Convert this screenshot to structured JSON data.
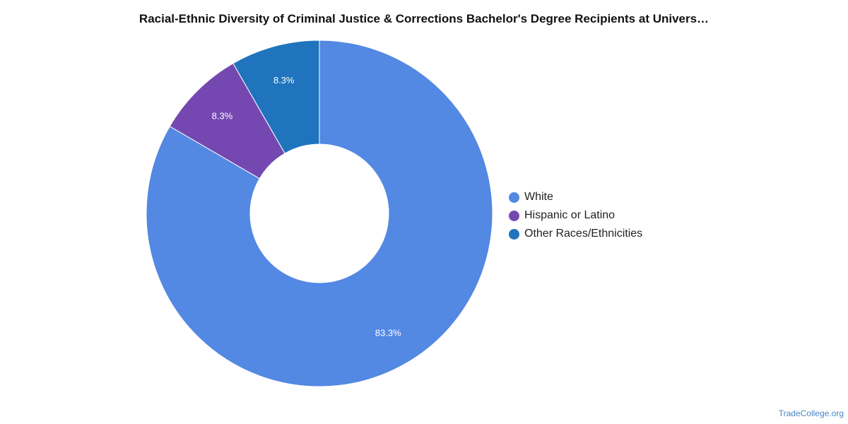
{
  "title": "Racial-Ethnic Diversity of Criminal Justice & Corrections Bachelor's Degree Recipients at Univers…",
  "credit": "TradeCollege.org",
  "chart_data": {
    "type": "pie",
    "variant": "donut",
    "title": "Racial-Ethnic Diversity of Criminal Justice & Corrections Bachelor's Degree Recipients at Univers…",
    "legend_position": "right",
    "slices": [
      {
        "name": "White",
        "value": 83.3,
        "label": "83.3%",
        "color": "#5388e3"
      },
      {
        "name": "Hispanic or Latino",
        "value": 8.3,
        "label": "8.3%",
        "color": "#7548b1"
      },
      {
        "name": "Other Races/Ethnicities",
        "value": 8.3,
        "label": "8.3%",
        "color": "#1f74bd"
      }
    ]
  }
}
